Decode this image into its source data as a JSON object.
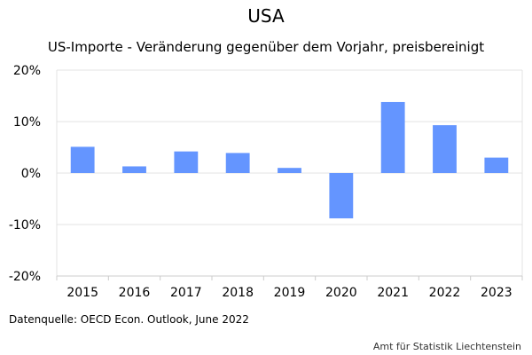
{
  "chart_data": {
    "type": "bar",
    "title": "USA",
    "subtitle": "US-Importe - Veränderung gegenüber dem Vorjahr, preisbereinigt",
    "categories": [
      "2015",
      "2016",
      "2017",
      "2018",
      "2019",
      "2020",
      "2021",
      "2022",
      "2023"
    ],
    "series": [
      {
        "values": [
          5.1,
          1.3,
          4.2,
          3.9,
          1.0,
          -8.8,
          13.8,
          9.3,
          3.0
        ]
      }
    ],
    "ylim": [
      -20,
      20
    ],
    "yticks": [
      -20,
      -10,
      0,
      10,
      20
    ],
    "ytick_labels": [
      "-20%",
      "-10%",
      "0%",
      "10%",
      "20%"
    ],
    "xlabel": "",
    "ylabel": "",
    "grid": true,
    "bar_color": "#6495ff"
  },
  "footer": {
    "source": "Datenquelle: OECD Econ. Outlook, June 2022",
    "credit": "Amt für Statistik Liechtenstein"
  }
}
